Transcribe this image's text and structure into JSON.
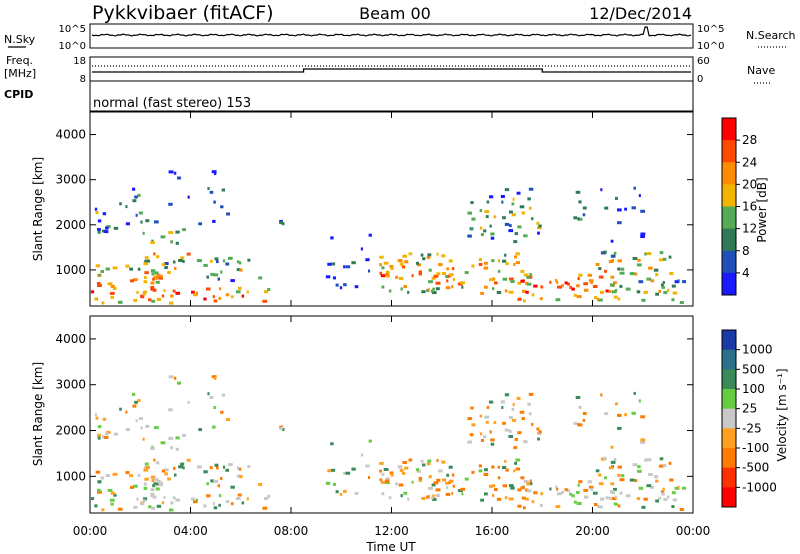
{
  "header": {
    "station": "Pykkvibaer (fitACF)",
    "beam": "Beam 00",
    "date": "12/Dec/2014"
  },
  "top_panels": {
    "nsky_label": "N.Sky",
    "nsearch_label": "N.Search",
    "noise_ticks": [
      "10^5",
      "10^0"
    ],
    "freq_label": "Freq.",
    "freq_unit": "[MHz]",
    "freq_ticks": [
      "18",
      "8"
    ],
    "nave_label": "Nave",
    "nave_ticks": [
      "60",
      "0"
    ],
    "cpid_label": "CPID",
    "cpid_text": "normal (fast stereo) 153"
  },
  "colors": {
    "power": [
      "#1a1aff",
      "#1f4fb8",
      "#2f7a55",
      "#55aa55",
      "#f2b400",
      "#ff8c00",
      "#ff4a00",
      "#ff0000"
    ],
    "velocity": [
      "#1a3aa8",
      "#2b6f88",
      "#3a8a5a",
      "#66cc44",
      "#c8c8c8",
      "#ffa020",
      "#ff7a00",
      "#ff3000",
      "#ff0000"
    ]
  },
  "chart_data": [
    {
      "type": "heatmap",
      "name": "power",
      "ylabel": "Slant Range [km]",
      "yticks": [
        "1000",
        "2000",
        "3000",
        "4000"
      ],
      "ylim": [
        200,
        4500
      ],
      "colorbar_label": "Power [dB]",
      "colorbar_ticks": [
        "4",
        "8",
        "12",
        "16",
        "20",
        "24",
        "28"
      ],
      "clim": [
        0,
        32
      ]
    },
    {
      "type": "heatmap",
      "name": "velocity",
      "ylabel": "Slant Range [km]",
      "yticks": [
        "1000",
        "2000",
        "3000",
        "4000"
      ],
      "ylim": [
        200,
        4500
      ],
      "colorbar_label": "Velocity [m s⁻¹]",
      "colorbar_ticks": [
        "1000",
        "500",
        "100",
        "25",
        "-25",
        "-100",
        "-500",
        "-1000"
      ]
    }
  ],
  "xaxis": {
    "label": "Time UT",
    "ticks": [
      "00:00",
      "04:00",
      "08:00",
      "12:00",
      "16:00",
      "20:00",
      "00:00"
    ]
  }
}
